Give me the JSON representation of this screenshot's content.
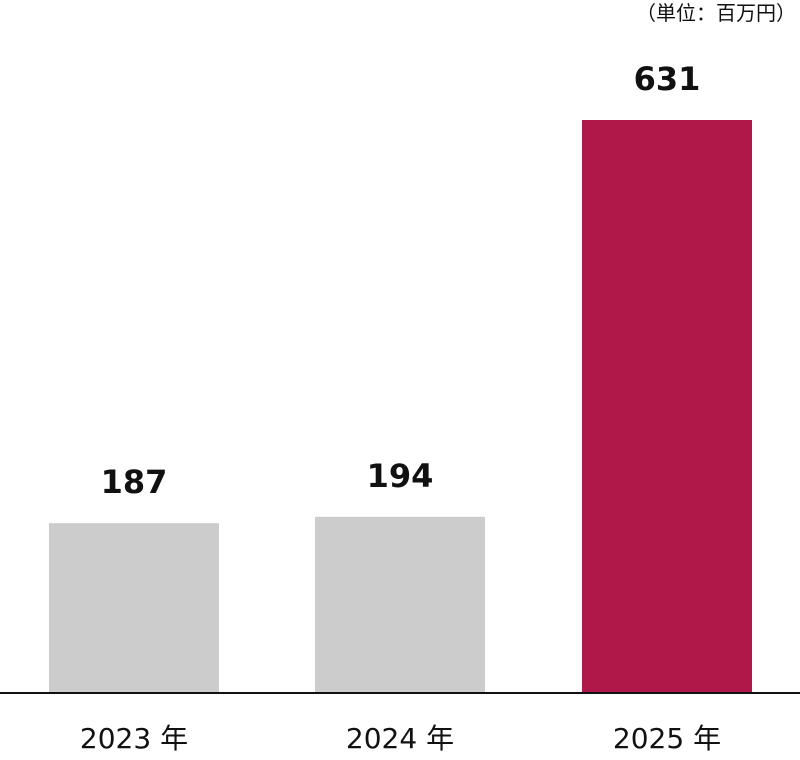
{
  "chart_data": {
    "type": "bar",
    "unit_label": "（単位：百万円）",
    "categories": [
      "2023 年",
      "2024 年",
      "2025 年"
    ],
    "values": [
      187,
      194,
      631
    ],
    "value_labels": [
      "187",
      "194",
      "631"
    ],
    "bar_colors": [
      "#cccccc",
      "#cccccc",
      "#b0184a"
    ],
    "baseline_color": "#111111",
    "ylim": [
      0,
      700
    ],
    "grid": false,
    "legend": "none"
  }
}
